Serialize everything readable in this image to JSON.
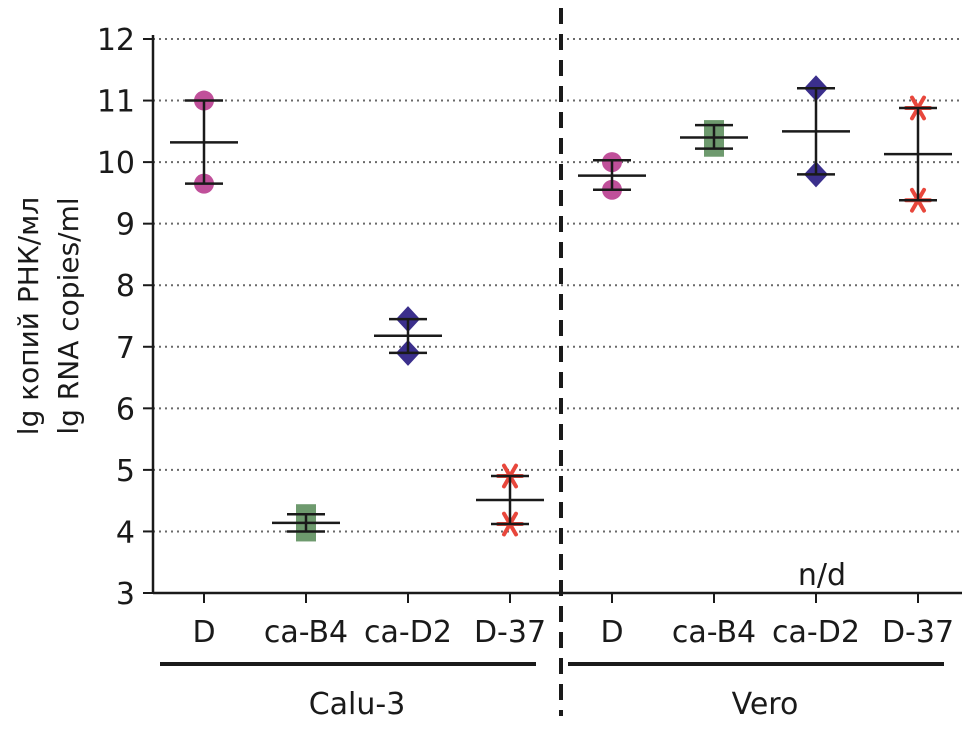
{
  "chart_data": {
    "type": "scatter",
    "subtype": "dot-plot-with-mean-and-range",
    "ylabel_lines": [
      "lg копий РНК/мл",
      "lg RNA copies/ml"
    ],
    "ylim": [
      3,
      12
    ],
    "yticks": [
      3,
      4,
      5,
      6,
      7,
      8,
      9,
      10,
      11,
      12
    ],
    "grid": "dotted horizontal",
    "groups": [
      {
        "name": "Calu-3",
        "categories": [
          {
            "label": "D",
            "marker": "circle",
            "color": "#c0509a",
            "points": [
              11.0,
              9.65
            ],
            "mean": 10.32,
            "low": 9.65,
            "high": 11.0
          },
          {
            "label": "ca-B4",
            "marker": "square",
            "color": "#6e9a6e",
            "points": [
              4.0,
              4.28
            ],
            "mean": 4.14,
            "low": 4.0,
            "high": 4.28
          },
          {
            "label": "ca-D2",
            "marker": "diamond",
            "color": "#3b2f8c",
            "points": [
              7.45,
              6.9
            ],
            "mean": 7.18,
            "low": 6.9,
            "high": 7.45
          },
          {
            "label": "D-37",
            "marker": "asterisk",
            "color": "#e8473c",
            "points": [
              4.9,
              4.12
            ],
            "mean": 4.51,
            "low": 4.12,
            "high": 4.9
          }
        ]
      },
      {
        "name": "Vero",
        "categories": [
          {
            "label": "D",
            "marker": "circle",
            "color": "#c0509a",
            "points": [
              10.0,
              9.55
            ],
            "mean": 9.78,
            "low": 9.55,
            "high": 10.03
          },
          {
            "label": "ca-B4",
            "marker": "square",
            "color": "#6e9a6e",
            "points": [
              10.52,
              10.25
            ],
            "mean": 10.4,
            "low": 10.22,
            "high": 10.6
          },
          {
            "label": "ca-D2",
            "marker": "diamond",
            "color": "#3b2f8c",
            "points": [
              11.2,
              9.8
            ],
            "mean": 10.5,
            "low": 9.8,
            "high": 11.2
          },
          {
            "label": "D-37",
            "marker": "asterisk",
            "color": "#e8473c",
            "points": [
              10.88,
              9.38
            ],
            "mean": 10.13,
            "low": 9.38,
            "high": 10.88
          }
        ]
      }
    ],
    "annotations": [
      {
        "text": "n/d",
        "group": "Vero",
        "category": "ca-D2"
      }
    ]
  }
}
